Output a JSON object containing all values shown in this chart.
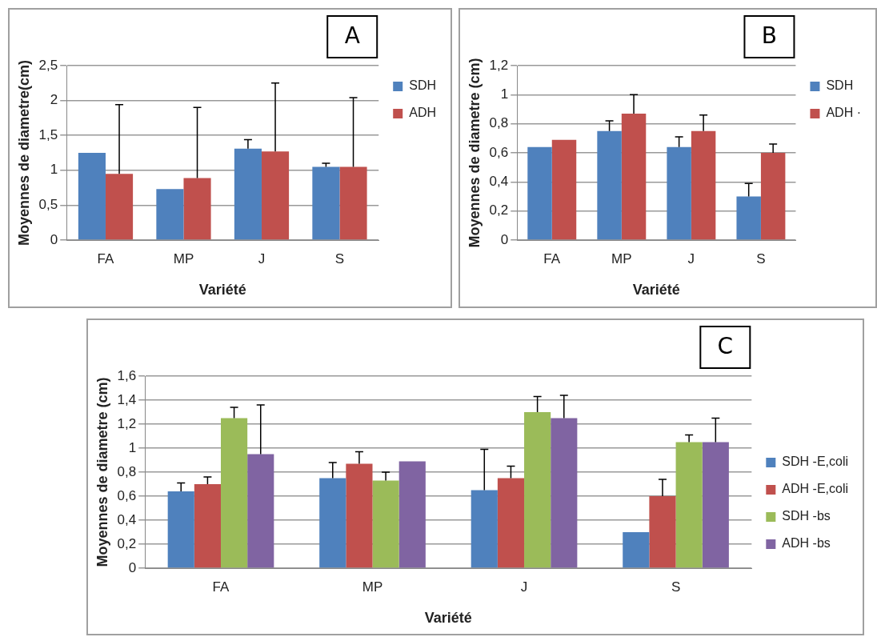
{
  "chart_data": [
    {
      "type": "bar",
      "title": "A",
      "xlabel": "Variété",
      "ylabel": "Moyennes de diametre(cm)",
      "categories": [
        "FA",
        "MP",
        "J",
        "S"
      ],
      "ylim": [
        0,
        2.5
      ],
      "yticks": [
        0,
        {
          "value": 0.5,
          "label": "0,5"
        },
        1,
        {
          "value": 1.5,
          "label": "1,5"
        },
        2,
        {
          "value": 2.5,
          "label": "2,5"
        }
      ],
      "grid": "y",
      "legend": "top right",
      "series": [
        {
          "name": "SDH",
          "color": "#4f81bd",
          "values": [
            1.25,
            0.73,
            1.31,
            1.05
          ],
          "errors": [
            null,
            null,
            [
              1.31,
              1.44
            ],
            [
              1.05,
              1.1
            ]
          ]
        },
        {
          "name": "ADH",
          "color": "#c0504d",
          "values": [
            0.95,
            0.89,
            1.27,
            1.05
          ],
          "errors": [
            [
              0.95,
              1.94
            ],
            [
              0.89,
              1.9
            ],
            [
              1.27,
              2.25
            ],
            [
              1.05,
              2.04
            ]
          ]
        }
      ]
    },
    {
      "type": "bar",
      "title": "B",
      "xlabel": "Variété",
      "ylabel": "Moyennes de diametre (cm)",
      "categories": [
        "FA",
        "MP",
        "J",
        "S"
      ],
      "ylim": [
        0,
        1.2
      ],
      "yticks": [
        0,
        {
          "value": 0.2,
          "label": "0,2"
        },
        {
          "value": 0.4,
          "label": "0,4"
        },
        {
          "value": 0.6,
          "label": "0,6"
        },
        {
          "value": 0.8,
          "label": "0,8"
        },
        1,
        {
          "value": 1.2,
          "label": "1,2"
        }
      ],
      "grid": "y",
      "legend": "top right",
      "series": [
        {
          "name": "SDH",
          "color": "#4f81bd",
          "values": [
            0.64,
            0.75,
            0.64,
            0.3
          ],
          "errors": [
            null,
            [
              0.75,
              0.82
            ],
            [
              0.64,
              0.71
            ],
            [
              0.3,
              0.39
            ]
          ]
        },
        {
          "name": "ADH ·",
          "color": "#c0504d",
          "values": [
            0.69,
            0.87,
            0.75,
            0.6
          ],
          "errors": [
            null,
            [
              0.87,
              1.0
            ],
            [
              0.75,
              0.86
            ],
            [
              0.6,
              0.66
            ]
          ]
        }
      ]
    },
    {
      "type": "bar",
      "title": "C",
      "xlabel": "Variété",
      "ylabel": "Moyennes de diametre (cm)",
      "categories": [
        "FA",
        "MP",
        "J",
        "S"
      ],
      "ylim": [
        0,
        1.6
      ],
      "yticks": [
        0,
        {
          "value": 0.2,
          "label": "0,2"
        },
        {
          "value": 0.4,
          "label": "0,4"
        },
        {
          "value": 0.6,
          "label": "0,6"
        },
        {
          "value": 0.8,
          "label": "0,8"
        },
        1,
        {
          "value": 1.2,
          "label": "1,2"
        },
        {
          "value": 1.4,
          "label": "1,4"
        },
        {
          "value": 1.6,
          "label": "1,6"
        }
      ],
      "grid": "y",
      "legend": "right",
      "series": [
        {
          "name": "SDH -E,coli",
          "color": "#4f81bd",
          "values": [
            0.64,
            0.75,
            0.65,
            0.3
          ],
          "errors": [
            [
              0.64,
              0.71
            ],
            [
              0.75,
              0.88
            ],
            [
              0.65,
              0.99
            ],
            null
          ]
        },
        {
          "name": "ADH -E,coli",
          "color": "#c0504d",
          "values": [
            0.7,
            0.87,
            0.75,
            0.6
          ],
          "errors": [
            [
              0.7,
              0.76
            ],
            [
              0.87,
              0.97
            ],
            [
              0.75,
              0.85
            ],
            [
              0.6,
              0.74
            ]
          ]
        },
        {
          "name": "SDH -bs",
          "color": "#9bbb59",
          "values": [
            1.25,
            0.73,
            1.3,
            1.05
          ],
          "errors": [
            [
              1.25,
              1.34
            ],
            [
              0.73,
              0.8
            ],
            [
              1.3,
              1.43
            ],
            [
              1.05,
              1.11
            ]
          ]
        },
        {
          "name": "ADH -bs",
          "color": "#8064a2",
          "values": [
            0.95,
            0.89,
            1.25,
            1.05
          ],
          "errors": [
            [
              0.95,
              1.36
            ],
            null,
            [
              1.25,
              1.44
            ],
            [
              1.05,
              1.25
            ]
          ]
        }
      ]
    }
  ]
}
